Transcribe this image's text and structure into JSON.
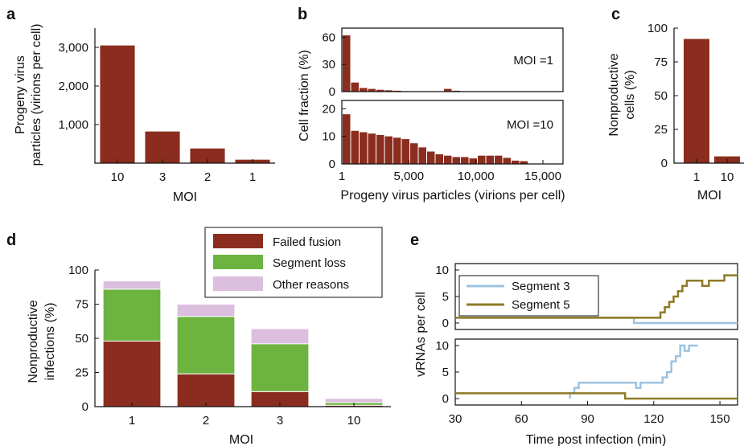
{
  "panels": {
    "a": "a",
    "b": "b",
    "c": "c",
    "d": "d",
    "e": "e"
  },
  "colors": {
    "failed": "#8b2d1e",
    "segloss": "#6db33f",
    "other": "#dcbedf",
    "seg3": "#9ec3e0",
    "seg5": "#8e7a24"
  },
  "chart_data": [
    {
      "id": "a",
      "type": "bar",
      "categories": [
        "10",
        "3",
        "2",
        "1"
      ],
      "values": [
        3050,
        820,
        380,
        90
      ],
      "ylabel": "Progeny virus particles (virions per cell)",
      "ylabel_lines": [
        "Progeny virus",
        "particles (virions per cell)"
      ],
      "xlabel": "MOI",
      "ylim": [
        0,
        3500
      ],
      "yticks": [
        1000,
        2000,
        3000
      ],
      "ytick_labels": [
        "1,000",
        "2,000",
        "3,000"
      ]
    },
    {
      "id": "b1",
      "type": "bar",
      "annotation": "MOI =1",
      "values": [
        62,
        10,
        4,
        3,
        2,
        1.5,
        1,
        0.5,
        0.5,
        0.3,
        0.2,
        0.2,
        3,
        1,
        0.5,
        0.3,
        0.2,
        0.1
      ],
      "ylim": [
        0,
        70
      ],
      "yticks": [
        0,
        30,
        60
      ],
      "ytick_labels": [
        "0",
        "30",
        "60"
      ]
    },
    {
      "id": "b2",
      "type": "bar",
      "annotation": "MOI =10",
      "values": [
        18,
        12,
        11.5,
        11,
        10.5,
        10,
        9.5,
        9,
        7.5,
        6,
        4.5,
        3.5,
        3,
        2.5,
        2.5,
        2,
        3,
        3,
        3,
        2.2,
        1.2,
        1
      ],
      "ylim": [
        0,
        23
      ],
      "yticks": [
        0,
        10,
        20
      ],
      "ytick_labels": [
        "0",
        "10",
        "20"
      ],
      "x_tick_labels": [
        "1",
        "5,000",
        "10,000",
        "15,000"
      ],
      "x_tick_values": [
        1,
        5000,
        10000,
        15000
      ],
      "xlim": [
        1,
        16500
      ],
      "xlabel": "Progeny virus particles (virions per cell)",
      "shared_ylabel": "Cell fraction (%)"
    },
    {
      "id": "c",
      "type": "bar",
      "categories": [
        "1",
        "10"
      ],
      "values": [
        92,
        5
      ],
      "ylabel": "Nonproductive cells (%)",
      "ylabel_lines": [
        "Nonproductive",
        "cells (%)"
      ],
      "xlabel": "MOI",
      "ylim": [
        0,
        100
      ],
      "yticks": [
        0,
        25,
        50,
        75,
        100
      ],
      "ytick_labels": [
        "0",
        "25",
        "50",
        "75",
        "100"
      ]
    },
    {
      "id": "d",
      "type": "bar",
      "stacked": true,
      "categories": [
        "1",
        "2",
        "3",
        "10"
      ],
      "series": [
        {
          "name": "Failed fusion",
          "values": [
            48,
            24,
            11,
            1
          ]
        },
        {
          "name": "Segment loss",
          "values": [
            38,
            42,
            35,
            2
          ]
        },
        {
          "name": "Other reasons",
          "values": [
            6,
            9,
            11,
            3
          ]
        }
      ],
      "ylabel": "Nonproductive infections (%)",
      "ylabel_lines": [
        "Nonproductive",
        "infections (%)"
      ],
      "xlabel": "MOI",
      "ylim": [
        0,
        100
      ],
      "yticks": [
        0,
        25,
        50,
        75,
        100
      ],
      "ytick_labels": [
        "0",
        "25",
        "50",
        "75",
        "100"
      ]
    },
    {
      "id": "e",
      "type": "line",
      "xlabel": "Time post infection (min)",
      "ylabel": "vRNAs per cell",
      "xlim": [
        30,
        158
      ],
      "x_ticks": [
        30,
        60,
        90,
        120,
        150
      ],
      "x_tick_labels": [
        "30",
        "60",
        "90",
        "120",
        "150"
      ],
      "subplots": [
        {
          "ylim": [
            0,
            10
          ],
          "yticks": [
            0,
            5,
            10
          ],
          "ytick_labels": [
            "0",
            "5",
            "10"
          ],
          "series": [
            {
              "name": "Segment 3",
              "points": [
                [
                  30,
                  1
                ],
                [
                  110,
                  1
                ],
                [
                  111,
                  0
                ],
                [
                  158,
                  0
                ]
              ]
            },
            {
              "name": "Segment 5",
              "points": [
                [
                  30,
                  1
                ],
                [
                  121,
                  1
                ],
                [
                  123,
                  2
                ],
                [
                  125,
                  3
                ],
                [
                  127,
                  4
                ],
                [
                  129,
                  5
                ],
                [
                  131,
                  6
                ],
                [
                  133,
                  7
                ],
                [
                  135,
                  8
                ],
                [
                  140,
                  8
                ],
                [
                  142,
                  7
                ],
                [
                  145,
                  8
                ],
                [
                  150,
                  8
                ],
                [
                  152,
                  9
                ],
                [
                  158,
                  9
                ]
              ]
            }
          ]
        },
        {
          "ylim": [
            0,
            10
          ],
          "yticks": [
            0,
            5,
            10
          ],
          "ytick_labels": [
            "0",
            "5",
            "10"
          ],
          "series": [
            {
              "name": "Segment 3",
              "points": [
                [
                  82,
                  0
                ],
                [
                  82,
                  1
                ],
                [
                  84,
                  2
                ],
                [
                  86,
                  3
                ],
                [
                  110,
                  3
                ],
                [
                  112,
                  2
                ],
                [
                  114,
                  3
                ],
                [
                  122,
                  3
                ],
                [
                  124,
                  4
                ],
                [
                  126,
                  5
                ],
                [
                  128,
                  7
                ],
                [
                  130,
                  8
                ],
                [
                  132,
                  10
                ],
                [
                  134,
                  9
                ],
                [
                  136,
                  10
                ],
                [
                  140,
                  10
                ]
              ]
            },
            {
              "name": "Segment 5",
              "points": [
                [
                  30,
                  1
                ],
                [
                  106,
                  1
                ],
                [
                  107,
                  0
                ],
                [
                  158,
                  0
                ]
              ]
            }
          ]
        }
      ]
    }
  ]
}
